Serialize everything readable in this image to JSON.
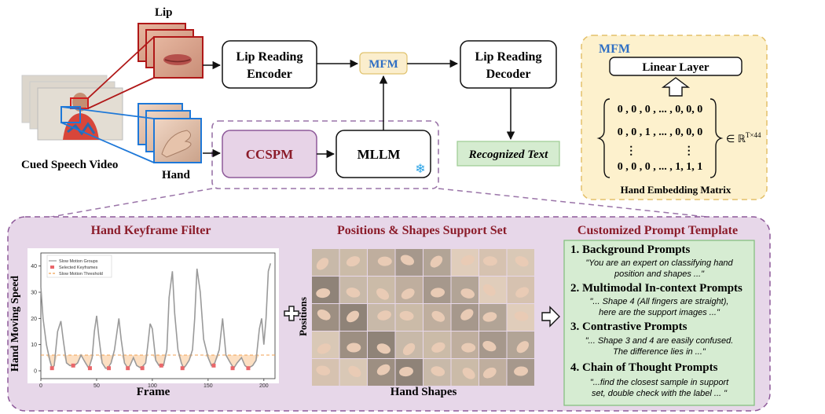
{
  "top": {
    "lip_label": "Lip",
    "hand_label": "Hand",
    "video_label": "Cued Speech Video",
    "encoder_line1": "Lip Reading",
    "encoder_line2": "Encoder",
    "mfm_badge": "MFM",
    "decoder_line1": "Lip Reading",
    "decoder_line2": "Decoder",
    "ccspm": "CCSPM",
    "mllm": "MLLM",
    "recognized": "Recognized Text"
  },
  "mfm_panel": {
    "title": "MFM",
    "linear_layer": "Linear Layer",
    "rows": [
      "0 , 0 , 0 , ... , 0, 0, 0",
      "0 , 0 , 1 , ... , 0, 0, 0",
      "⋮                 ⋮",
      "0 , 0 , 0 , ... , 1, 1, 1"
    ],
    "dim_prefix": "∈ ℝ",
    "dim_sup": "T×44",
    "caption": "Hand Embedding Matrix"
  },
  "bottom": {
    "filter_title": "Hand Keyframe Filter",
    "support_title": "Positions & Shapes Support Set",
    "template_title": "Customized Prompt Template",
    "ylabel": "Hand Moving Speed",
    "xlabel": "Frame",
    "positions_label": "Positions",
    "shapes_label": "Hand Shapes",
    "prompts": [
      {
        "heading": "1. Background Prompts",
        "text1": "\"You are an expert on classifying hand",
        "text2": "position and shapes ...\""
      },
      {
        "heading": "2. Multimodal In-context Prompts",
        "text1": "\"... Shape 4 (All fingers are straight),",
        "text2": "here are the support images ...\""
      },
      {
        "heading": "3. Contrastive Prompts",
        "text1": "\"... Shape 3 and 4 are easily confused.",
        "text2": "The difference lies in ...\""
      },
      {
        "heading": "4. Chain of Thought Prompts",
        "text1": "\"...find the closest sample in support",
        "text2": "set, double check with the label ... \""
      }
    ]
  },
  "chart_data": {
    "type": "line",
    "xlabel": "Frame",
    "ylabel": "Hand Moving Speed",
    "xlim": [
      0,
      210
    ],
    "ylim": [
      -3,
      45
    ],
    "xticks": [
      0,
      50,
      100,
      150,
      200
    ],
    "yticks": [
      0,
      10,
      20,
      30,
      40
    ],
    "threshold": 6,
    "legend": [
      "Slow Motion Groups",
      "Selected Keyframes",
      "Slow Motion Threshold"
    ],
    "legend_position": "top-left",
    "series": [
      {
        "name": "Slow Motion Groups",
        "x": [
          0,
          2,
          5,
          8,
          10,
          12,
          15,
          18,
          20,
          23,
          26,
          30,
          33,
          36,
          40,
          43,
          46,
          48,
          50,
          52,
          55,
          58,
          60,
          63,
          66,
          70,
          72,
          75,
          78,
          80,
          83,
          86,
          90,
          94,
          96,
          98,
          100,
          103,
          106,
          110,
          113,
          115,
          118,
          120,
          123,
          126,
          128,
          130,
          133,
          136,
          138,
          140,
          143,
          146,
          150,
          153,
          156,
          160,
          163,
          166,
          170,
          173,
          176,
          180,
          183,
          186,
          190,
          193,
          196,
          198,
          200,
          202,
          204,
          206
        ],
        "y": [
          32,
          20,
          10,
          4,
          1,
          2,
          15,
          19,
          12,
          3,
          2,
          2,
          3,
          6,
          3,
          1,
          5,
          15,
          21,
          13,
          3,
          1,
          1,
          3,
          8,
          20,
          12,
          3,
          1,
          2,
          5,
          2,
          1,
          3,
          10,
          18,
          16,
          4,
          2,
          2,
          8,
          28,
          38,
          22,
          8,
          3,
          1,
          2,
          4,
          8,
          20,
          39,
          30,
          12,
          5,
          2,
          3,
          8,
          20,
          6,
          3,
          1,
          3,
          5,
          2,
          1,
          2,
          4,
          16,
          20,
          10,
          20,
          38,
          41
        ]
      },
      {
        "name": "Selected Keyframes",
        "x": [
          10,
          29,
          44,
          61,
          78,
          91,
          108,
          127,
          155,
          172,
          186
        ],
        "y": [
          1,
          2,
          1,
          1,
          1,
          1,
          2,
          1,
          2,
          1,
          1
        ]
      }
    ]
  }
}
